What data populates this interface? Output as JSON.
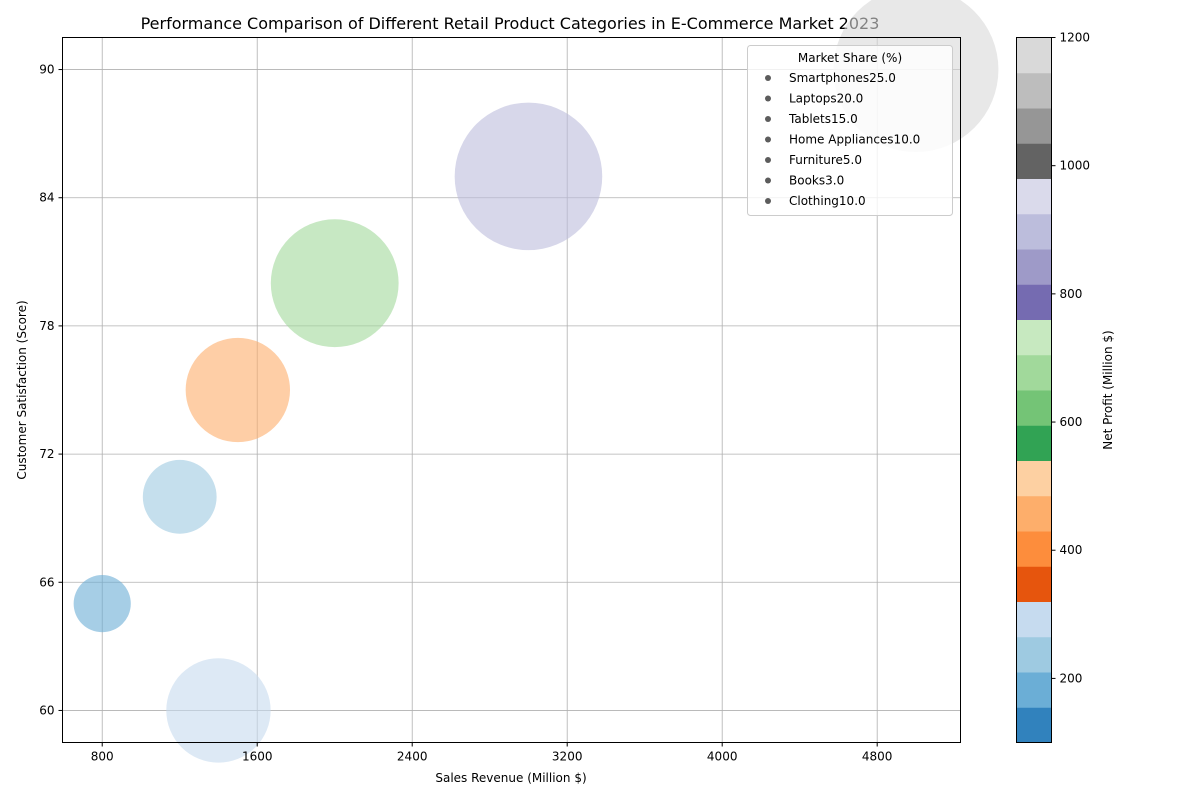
{
  "chart_data": {
    "type": "scatter",
    "title": "Performance Comparison of Different Retail Product Categories in E-Commerce Market 2023",
    "xlabel": "Sales Revenue (Million $)",
    "ylabel": "Customer Satisfaction (Score)",
    "xlim": [
      595,
      5230
    ],
    "ylim": [
      58.5,
      91.5
    ],
    "xticks": [
      800,
      1600,
      2400,
      3200,
      4000,
      4800
    ],
    "yticks": [
      60,
      66,
      72,
      78,
      84,
      90
    ],
    "xtick_labels": [
      "800",
      "1600",
      "2400",
      "3200",
      "4000",
      "4800"
    ],
    "ytick_labels": [
      "60",
      "66",
      "72",
      "78",
      "84",
      "90"
    ],
    "grid": true,
    "legend": {
      "title": "Market Share (%)",
      "placement": "top-right",
      "entries": [
        " Smartphones25.0",
        " Laptops20.0",
        " Tablets15.0",
        " Home Appliances10.0",
        " Furniture5.0",
        " Books3.0",
        " Clothing10.0"
      ]
    },
    "colorbar": {
      "label": "Net Profit (Million $)",
      "min": 100,
      "max": 1200,
      "ticks": [
        200,
        400,
        600,
        800,
        1000,
        1200
      ],
      "tick_labels": [
        "200",
        "400",
        "600",
        "800",
        "1000",
        "1200"
      ],
      "colormap": "tab20c"
    },
    "points": [
      {
        "category": "Smartphones",
        "sales_revenue": 5000,
        "satisfaction": 90,
        "market_share": 25.0,
        "net_profit": 1200
      },
      {
        "category": "Laptops",
        "sales_revenue": 3000,
        "satisfaction": 85,
        "market_share": 20.0,
        "net_profit": 900
      },
      {
        "category": "Tablets",
        "sales_revenue": 2000,
        "satisfaction": 80,
        "market_share": 15.0,
        "net_profit": 650
      },
      {
        "category": "Home Appliances",
        "sales_revenue": 1500,
        "satisfaction": 75,
        "market_share": 10.0,
        "net_profit": 450
      },
      {
        "category": "Furniture",
        "sales_revenue": 1200,
        "satisfaction": 70,
        "market_share": 5.0,
        "net_profit": 240
      },
      {
        "category": "Books",
        "sales_revenue": 800,
        "satisfaction": 65,
        "market_share": 3.0,
        "net_profit": 160
      },
      {
        "category": "Clothing",
        "sales_revenue": 1400,
        "satisfaction": 60,
        "market_share": 10.0,
        "net_profit": 300
      }
    ]
  }
}
